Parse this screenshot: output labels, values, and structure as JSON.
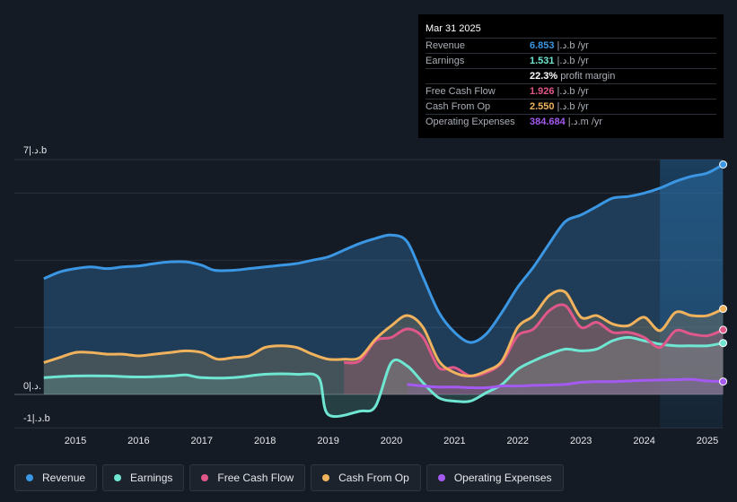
{
  "tooltip": {
    "date": "Mar 31 2025",
    "rows": [
      {
        "label": "Revenue",
        "value": "6.853",
        "unit": "|.د.b /yr",
        "color": "#3b97e3"
      },
      {
        "label": "Earnings",
        "value": "1.531",
        "unit": "|.د.b /yr",
        "color": "#6ee6d2"
      },
      {
        "label": "",
        "value": "22.3%",
        "unit": "profit margin",
        "color": "#ffffff"
      },
      {
        "label": "Free Cash Flow",
        "value": "1.926",
        "unit": "|.د.b /yr",
        "color": "#e0578a"
      },
      {
        "label": "Cash From Op",
        "value": "2.550",
        "unit": "|.د.b /yr",
        "color": "#f0b25c"
      },
      {
        "label": "Operating Expenses",
        "value": "384.684",
        "unit": "|.د.m /yr",
        "color": "#a45af0"
      }
    ]
  },
  "axis": {
    "y_top_label": "7|.د.b",
    "y_zero_label": "0|.د.",
    "y_bottom_label": "-1|.د.b"
  },
  "legend": [
    {
      "label": "Revenue",
      "color": "#3b97e3"
    },
    {
      "label": "Earnings",
      "color": "#6ee6d2"
    },
    {
      "label": "Free Cash Flow",
      "color": "#e0578a"
    },
    {
      "label": "Cash From Op",
      "color": "#f0b25c"
    },
    {
      "label": "Operating Expenses",
      "color": "#a45af0"
    }
  ],
  "chart_data": {
    "type": "area",
    "title": "",
    "xlabel": "",
    "ylabel": "",
    "ylim": [
      -1,
      7
    ],
    "x_ticks": [
      "2015",
      "2016",
      "2017",
      "2018",
      "2019",
      "2020",
      "2021",
      "2022",
      "2023",
      "2024",
      "2025"
    ],
    "forecast_start": 2024.25,
    "series": [
      {
        "name": "Revenue",
        "color": "#3b97e3",
        "points": [
          [
            2014.5,
            3.45
          ],
          [
            2014.75,
            3.65
          ],
          [
            2015.0,
            3.75
          ],
          [
            2015.25,
            3.8
          ],
          [
            2015.5,
            3.75
          ],
          [
            2015.75,
            3.8
          ],
          [
            2016.0,
            3.83
          ],
          [
            2016.25,
            3.9
          ],
          [
            2016.5,
            3.95
          ],
          [
            2016.75,
            3.95
          ],
          [
            2017.0,
            3.85
          ],
          [
            2017.2,
            3.7
          ],
          [
            2017.5,
            3.7
          ],
          [
            2017.75,
            3.75
          ],
          [
            2018.0,
            3.8
          ],
          [
            2018.25,
            3.85
          ],
          [
            2018.5,
            3.9
          ],
          [
            2018.75,
            4.0
          ],
          [
            2019.0,
            4.1
          ],
          [
            2019.25,
            4.3
          ],
          [
            2019.5,
            4.5
          ],
          [
            2019.75,
            4.65
          ],
          [
            2020.0,
            4.75
          ],
          [
            2020.25,
            4.55
          ],
          [
            2020.5,
            3.5
          ],
          [
            2020.75,
            2.45
          ],
          [
            2021.0,
            1.85
          ],
          [
            2021.25,
            1.55
          ],
          [
            2021.5,
            1.8
          ],
          [
            2021.75,
            2.45
          ],
          [
            2022.0,
            3.2
          ],
          [
            2022.25,
            3.8
          ],
          [
            2022.5,
            4.5
          ],
          [
            2022.75,
            5.15
          ],
          [
            2023.0,
            5.35
          ],
          [
            2023.25,
            5.6
          ],
          [
            2023.5,
            5.85
          ],
          [
            2023.75,
            5.9
          ],
          [
            2024.0,
            6.0
          ],
          [
            2024.25,
            6.15
          ],
          [
            2024.5,
            6.35
          ],
          [
            2024.75,
            6.5
          ],
          [
            2025.0,
            6.6
          ],
          [
            2025.25,
            6.853
          ]
        ]
      },
      {
        "name": "Earnings",
        "color": "#6ee6d2",
        "points": [
          [
            2014.5,
            0.5
          ],
          [
            2015.0,
            0.55
          ],
          [
            2015.5,
            0.55
          ],
          [
            2016.0,
            0.52
          ],
          [
            2016.5,
            0.55
          ],
          [
            2016.75,
            0.58
          ],
          [
            2017.0,
            0.5
          ],
          [
            2017.5,
            0.5
          ],
          [
            2018.0,
            0.6
          ],
          [
            2018.5,
            0.6
          ],
          [
            2018.85,
            0.5
          ],
          [
            2019.0,
            -0.6
          ],
          [
            2019.5,
            -0.5
          ],
          [
            2019.75,
            -0.35
          ],
          [
            2020.0,
            0.95
          ],
          [
            2020.25,
            0.85
          ],
          [
            2020.5,
            0.35
          ],
          [
            2020.75,
            -0.1
          ],
          [
            2021.0,
            -0.2
          ],
          [
            2021.25,
            -0.2
          ],
          [
            2021.5,
            0.05
          ],
          [
            2021.75,
            0.3
          ],
          [
            2022.0,
            0.75
          ],
          [
            2022.25,
            1.0
          ],
          [
            2022.5,
            1.2
          ],
          [
            2022.75,
            1.35
          ],
          [
            2023.0,
            1.3
          ],
          [
            2023.25,
            1.35
          ],
          [
            2023.5,
            1.6
          ],
          [
            2023.75,
            1.7
          ],
          [
            2024.0,
            1.6
          ],
          [
            2024.25,
            1.5
          ],
          [
            2024.5,
            1.45
          ],
          [
            2024.75,
            1.45
          ],
          [
            2025.0,
            1.45
          ],
          [
            2025.25,
            1.531
          ]
        ]
      },
      {
        "name": "Free Cash Flow",
        "color": "#e0578a",
        "points": [
          [
            2019.25,
            0.95
          ],
          [
            2019.5,
            1.0
          ],
          [
            2019.75,
            1.6
          ],
          [
            2020.0,
            1.7
          ],
          [
            2020.25,
            1.95
          ],
          [
            2020.5,
            1.7
          ],
          [
            2020.75,
            0.8
          ],
          [
            2021.0,
            0.8
          ],
          [
            2021.25,
            0.55
          ],
          [
            2021.5,
            0.65
          ],
          [
            2021.75,
            0.95
          ],
          [
            2022.0,
            1.75
          ],
          [
            2022.25,
            1.95
          ],
          [
            2022.5,
            2.5
          ],
          [
            2022.75,
            2.65
          ],
          [
            2023.0,
            2.0
          ],
          [
            2023.25,
            2.15
          ],
          [
            2023.5,
            1.85
          ],
          [
            2023.75,
            1.85
          ],
          [
            2024.0,
            1.7
          ],
          [
            2024.25,
            1.4
          ],
          [
            2024.5,
            1.9
          ],
          [
            2024.75,
            1.8
          ],
          [
            2025.0,
            1.75
          ],
          [
            2025.25,
            1.926
          ]
        ]
      },
      {
        "name": "Cash From Op",
        "color": "#f0b25c",
        "points": [
          [
            2014.5,
            0.95
          ],
          [
            2014.75,
            1.1
          ],
          [
            2015.0,
            1.25
          ],
          [
            2015.25,
            1.25
          ],
          [
            2015.5,
            1.2
          ],
          [
            2015.75,
            1.2
          ],
          [
            2016.0,
            1.15
          ],
          [
            2016.25,
            1.2
          ],
          [
            2016.5,
            1.25
          ],
          [
            2016.75,
            1.3
          ],
          [
            2017.0,
            1.25
          ],
          [
            2017.25,
            1.05
          ],
          [
            2017.5,
            1.1
          ],
          [
            2017.75,
            1.15
          ],
          [
            2018.0,
            1.4
          ],
          [
            2018.25,
            1.45
          ],
          [
            2018.5,
            1.4
          ],
          [
            2018.75,
            1.2
          ],
          [
            2019.0,
            1.05
          ],
          [
            2019.25,
            1.05
          ],
          [
            2019.5,
            1.1
          ],
          [
            2019.75,
            1.65
          ],
          [
            2020.0,
            2.05
          ],
          [
            2020.25,
            2.35
          ],
          [
            2020.5,
            2.0
          ],
          [
            2020.75,
            1.0
          ],
          [
            2021.0,
            0.65
          ],
          [
            2021.25,
            0.55
          ],
          [
            2021.5,
            0.7
          ],
          [
            2021.75,
            1.0
          ],
          [
            2022.0,
            2.0
          ],
          [
            2022.25,
            2.35
          ],
          [
            2022.5,
            2.95
          ],
          [
            2022.75,
            3.05
          ],
          [
            2023.0,
            2.3
          ],
          [
            2023.25,
            2.35
          ],
          [
            2023.5,
            2.1
          ],
          [
            2023.75,
            2.05
          ],
          [
            2024.0,
            2.3
          ],
          [
            2024.25,
            1.9
          ],
          [
            2024.5,
            2.45
          ],
          [
            2024.75,
            2.35
          ],
          [
            2025.0,
            2.35
          ],
          [
            2025.25,
            2.55
          ]
        ]
      },
      {
        "name": "Operating Expenses",
        "color": "#a45af0",
        "points": [
          [
            2020.25,
            0.3
          ],
          [
            2020.5,
            0.25
          ],
          [
            2020.75,
            0.22
          ],
          [
            2021.0,
            0.22
          ],
          [
            2021.25,
            0.2
          ],
          [
            2021.5,
            0.2
          ],
          [
            2021.75,
            0.25
          ],
          [
            2022.0,
            0.25
          ],
          [
            2022.25,
            0.27
          ],
          [
            2022.5,
            0.28
          ],
          [
            2022.75,
            0.3
          ],
          [
            2023.0,
            0.36
          ],
          [
            2023.25,
            0.38
          ],
          [
            2023.5,
            0.38
          ],
          [
            2023.75,
            0.4
          ],
          [
            2024.0,
            0.42
          ],
          [
            2024.25,
            0.43
          ],
          [
            2024.5,
            0.44
          ],
          [
            2024.75,
            0.45
          ],
          [
            2025.0,
            0.4
          ],
          [
            2025.25,
            0.385
          ]
        ]
      }
    ]
  }
}
